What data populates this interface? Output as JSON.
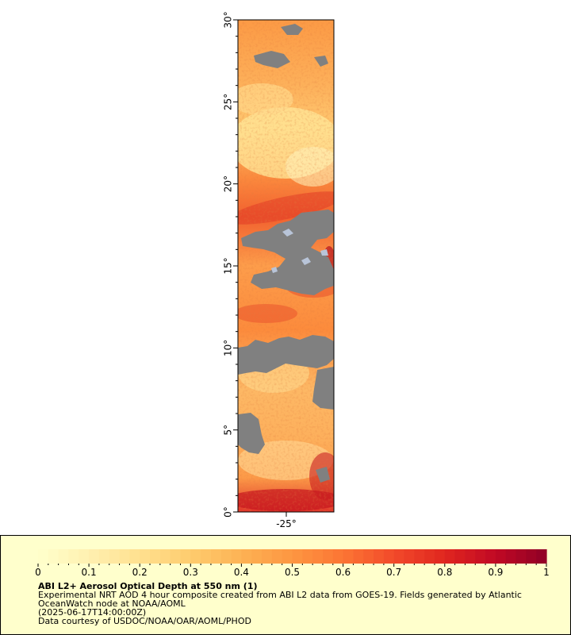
{
  "map": {
    "lat_ticks": [
      "0°",
      "5°",
      "10°",
      "15°",
      "20°",
      "25°",
      "30°"
    ],
    "lon_ticks": [
      "-25°"
    ],
    "lat_range": [
      0,
      30
    ],
    "no_data_color": "#808080",
    "ice_color": "#b8c4d8"
  },
  "legend": {
    "ticks": [
      "0",
      "0.1",
      "0.2",
      "0.3",
      "0.4",
      "0.5",
      "0.6",
      "0.7",
      "0.8",
      "0.9",
      "1"
    ],
    "range": [
      0,
      1
    ],
    "colors": [
      "#ffffcc",
      "#fff0b0",
      "#ffe08f",
      "#fecc6e",
      "#fdb254",
      "#fd9641",
      "#fc7534",
      "#f24a2a",
      "#e0261f",
      "#c10924",
      "#8f0026"
    ],
    "background": "#ffffcc"
  },
  "caption": {
    "title": "ABI L2+ Aerosol Optical Depth at 550 nm (1)",
    "line1": "Experimental NRT AOD 4 hour composite created from ABI L2 data from GOES-19. Fields generated by Atlantic",
    "line2": "OceanWatch node at NOAA/AOML",
    "line3": "(2025-06-17T14:00:00Z)",
    "line4": "Data courtesy of USDOC/NOAA/OAR/AOML/PHOD"
  }
}
